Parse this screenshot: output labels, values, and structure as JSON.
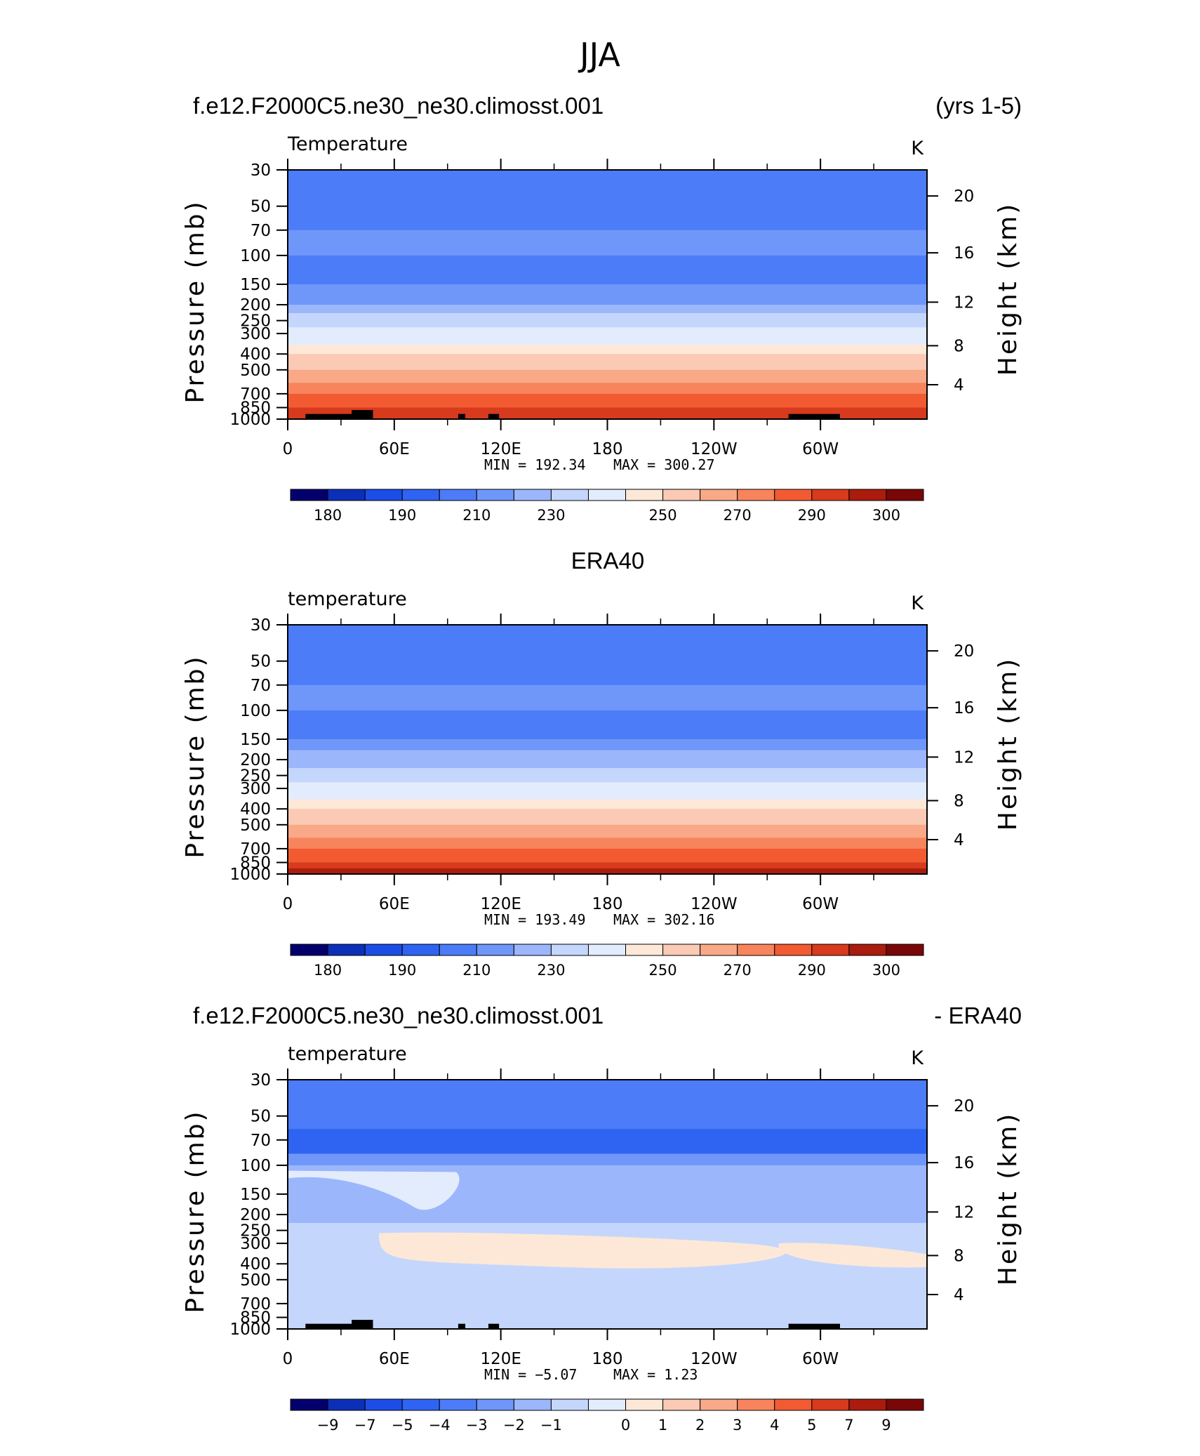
{
  "figure": {
    "title": "JJA",
    "panels": [
      {
        "title_left": "f.e12.F2000C5.ne30_ne30.climosst.001",
        "title_right": "(yrs 1-5)",
        "title_center": "",
        "label_left": "Temperature",
        "label_right": "K",
        "min_text": "MIN =  192.34",
        "max_text": "MAX =  300.27",
        "colorbar_labels": [
          "180",
          "190",
          "210",
          "230",
          "250",
          "270",
          "290",
          "300"
        ]
      },
      {
        "title_left": "",
        "title_right": "",
        "title_center": "ERA40",
        "label_left": "temperature",
        "label_right": "K",
        "min_text": "MIN =  193.49",
        "max_text": "MAX =  302.16",
        "colorbar_labels": [
          "180",
          "190",
          "210",
          "230",
          "250",
          "270",
          "290",
          "300"
        ]
      },
      {
        "title_left": "f.e12.F2000C5.ne30_ne30.climosst.001",
        "title_right": "- ERA40",
        "title_center": "",
        "label_left": "temperature",
        "label_right": "K",
        "min_text": "MIN =    −5.07",
        "max_text": "MAX =     1.23",
        "colorbar_labels": [
          "−9",
          "−7",
          "−5",
          "−4",
          "−3",
          "−2",
          "−1",
          "0",
          "1",
          "2",
          "3",
          "4",
          "5",
          "7",
          "9"
        ]
      }
    ]
  },
  "chart_data": [
    {
      "type": "heatmap",
      "title": "f.e12.F2000C5.ne30_ne30.climosst.001",
      "subtitle": "(yrs 1-5)",
      "variable": "Temperature",
      "units": "K",
      "xlabel": "",
      "ylabel": "Pressure (mb)",
      "ylabel_right": "Height (km)",
      "x_ticks": [
        "0",
        "60E",
        "120E",
        "180",
        "120W",
        "60W"
      ],
      "y_ticks": [
        "30",
        "50",
        "70",
        "100",
        "150",
        "200",
        "250",
        "300",
        "400",
        "500",
        "700",
        "850",
        "1000"
      ],
      "y_ticks_right": [
        "4",
        "8",
        "12",
        "16",
        "20"
      ],
      "ylim": [
        1000,
        30
      ],
      "y_scale": "log",
      "min": 192.34,
      "max": 300.27,
      "colorbar_levels": [
        180,
        190,
        210,
        230,
        250,
        270,
        290,
        300
      ],
      "colors": [
        "#03006d",
        "#0c2fb8",
        "#1c4de7",
        "#2f63f2",
        "#4c7cf8",
        "#6f97fa",
        "#9bb6fb",
        "#c5d6fc",
        "#e2ecfd",
        "#fde8d8",
        "#fbcab4",
        "#f9a988",
        "#f7845c",
        "#f25b32",
        "#d73a1c",
        "#a91c0e",
        "#790707"
      ]
    },
    {
      "type": "heatmap",
      "title": "ERA40",
      "variable": "temperature",
      "units": "K",
      "xlabel": "",
      "ylabel": "Pressure (mb)",
      "ylabel_right": "Height (km)",
      "x_ticks": [
        "0",
        "60E",
        "120E",
        "180",
        "120W",
        "60W"
      ],
      "y_ticks": [
        "30",
        "50",
        "70",
        "100",
        "150",
        "200",
        "250",
        "300",
        "400",
        "500",
        "700",
        "850",
        "1000"
      ],
      "y_ticks_right": [
        "4",
        "8",
        "12",
        "16",
        "20"
      ],
      "ylim": [
        1000,
        30
      ],
      "y_scale": "log",
      "min": 193.49,
      "max": 302.16,
      "colorbar_levels": [
        180,
        190,
        210,
        230,
        250,
        270,
        290,
        300
      ],
      "colors": [
        "#03006d",
        "#0c2fb8",
        "#1c4de7",
        "#2f63f2",
        "#4c7cf8",
        "#6f97fa",
        "#9bb6fb",
        "#c5d6fc",
        "#e2ecfd",
        "#fde8d8",
        "#fbcab4",
        "#f9a988",
        "#f7845c",
        "#f25b32",
        "#d73a1c",
        "#a91c0e",
        "#790707"
      ]
    },
    {
      "type": "heatmap",
      "title": "f.e12.F2000C5.ne30_ne30.climosst.001",
      "subtitle": "- ERA40",
      "variable": "temperature",
      "units": "K",
      "xlabel": "",
      "ylabel": "Pressure (mb)",
      "ylabel_right": "Height (km)",
      "x_ticks": [
        "0",
        "60E",
        "120E",
        "180",
        "120W",
        "60W"
      ],
      "y_ticks": [
        "30",
        "50",
        "70",
        "100",
        "150",
        "200",
        "250",
        "300",
        "400",
        "500",
        "700",
        "850",
        "1000"
      ],
      "y_ticks_right": [
        "4",
        "8",
        "12",
        "16",
        "20"
      ],
      "ylim": [
        1000,
        30
      ],
      "y_scale": "log",
      "min": -5.07,
      "max": 1.23,
      "colorbar_levels": [
        -9,
        -7,
        -5,
        -4,
        -3,
        -2,
        -1,
        0,
        1,
        2,
        3,
        4,
        5,
        7,
        9
      ],
      "colors": [
        "#03006d",
        "#0c2fb8",
        "#1c4de7",
        "#2f63f2",
        "#4c7cf8",
        "#6f97fa",
        "#9bb6fb",
        "#c5d6fc",
        "#e2ecfd",
        "#fde8d8",
        "#fbcab4",
        "#f9a988",
        "#f7845c",
        "#f25b32",
        "#d73a1c",
        "#a91c0e",
        "#790707"
      ]
    }
  ]
}
